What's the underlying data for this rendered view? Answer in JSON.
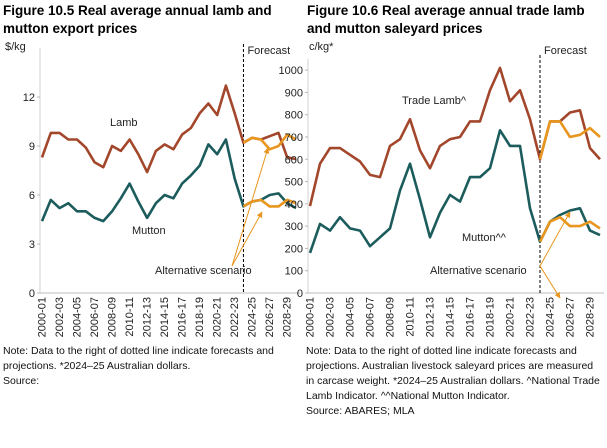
{
  "chart_data": [
    {
      "type": "line",
      "title": [
        "Figure 10.5 Real average annual lamb and",
        "mutton export prices"
      ],
      "y_label": "$/kg",
      "categories": [
        "2000-01",
        null,
        "2002-03",
        null,
        "2004-05",
        null,
        "2006-07",
        null,
        "2008-09",
        null,
        "2010-11",
        null,
        "2012-13",
        null,
        "2014-15",
        null,
        "2016-17",
        null,
        "2018-19",
        null,
        "2020-21",
        null,
        "2022-23",
        null,
        "2024-25",
        null,
        "2026-27",
        null,
        "2028-29",
        null
      ],
      "series": [
        {
          "name": "Lamb",
          "color": "#a3472c",
          "values": [
            8.3,
            9.8,
            9.8,
            9.4,
            9.4,
            8.9,
            8.0,
            7.7,
            9.0,
            8.7,
            9.4,
            8.5,
            7.4,
            8.7,
            9.1,
            8.8,
            9.7,
            10.1,
            11.0,
            11.6,
            10.9,
            12.7,
            11.0,
            9.2,
            9.5,
            9.4,
            9.6,
            9.8,
            8.3,
            8.2
          ]
        },
        {
          "name": "Mutton",
          "color": "#1d5c5c",
          "values": [
            4.4,
            5.7,
            5.2,
            5.5,
            5.0,
            5.0,
            4.6,
            4.4,
            5.0,
            5.8,
            6.7,
            5.6,
            4.6,
            5.5,
            6.0,
            5.8,
            6.7,
            7.2,
            7.8,
            9.1,
            8.5,
            9.4,
            7.0,
            5.3,
            5.6,
            5.7,
            6.0,
            6.1,
            5.5,
            5.2
          ]
        },
        {
          "color": "#e8961e",
          "values": [
            null,
            null,
            null,
            null,
            null,
            null,
            null,
            null,
            null,
            null,
            null,
            null,
            null,
            null,
            null,
            null,
            null,
            null,
            null,
            null,
            null,
            null,
            null,
            9.2,
            9.5,
            9.4,
            8.8,
            9.0,
            9.7,
            9.4
          ]
        },
        {
          "color": "#e8961e",
          "values": [
            null,
            null,
            null,
            null,
            null,
            null,
            null,
            null,
            null,
            null,
            null,
            null,
            null,
            null,
            null,
            null,
            null,
            null,
            null,
            null,
            null,
            null,
            null,
            5.3,
            5.6,
            5.7,
            5.3,
            5.3,
            5.7,
            5.5
          ]
        }
      ],
      "annotation": "Alternative scenario",
      "forecast_label": "Forecast",
      "ylim": [
        0,
        15
      ],
      "yticks": [
        0,
        3,
        6,
        9,
        12
      ]
    },
    {
      "type": "line",
      "title": [
        "Figure 10.6 Real average annual trade lamb",
        "and mutton saleyard prices"
      ],
      "y_label": "c/kg*",
      "categories": [
        "2000-01",
        null,
        "2002-03",
        null,
        "2004-05",
        null,
        "2006-07",
        null,
        "2008-09",
        null,
        "2010-11",
        null,
        "2012-13",
        null,
        "2014-15",
        null,
        "2016-17",
        null,
        "2018-19",
        null,
        "2020-21",
        null,
        "2022-23",
        null,
        "2024-25",
        null,
        "2026-27",
        null,
        "2028-29",
        null
      ],
      "series": [
        {
          "name": "Trade Lamb^",
          "color": "#a3472c",
          "values": [
            390,
            580,
            650,
            650,
            620,
            590,
            530,
            520,
            660,
            690,
            780,
            640,
            560,
            660,
            690,
            700,
            770,
            770,
            910,
            1010,
            860,
            910,
            780,
            600,
            770,
            770,
            810,
            820,
            650,
            600
          ]
        },
        {
          "name": "Mutton^^",
          "color": "#1d5c5c",
          "values": [
            180,
            310,
            280,
            340,
            290,
            280,
            210,
            250,
            290,
            460,
            580,
            420,
            250,
            360,
            440,
            410,
            520,
            520,
            560,
            730,
            660,
            660,
            380,
            230,
            320,
            350,
            370,
            380,
            280,
            260
          ]
        },
        {
          "color": "#e8961e",
          "values": [
            null,
            null,
            null,
            null,
            null,
            null,
            null,
            null,
            null,
            null,
            null,
            null,
            null,
            null,
            null,
            null,
            null,
            null,
            null,
            null,
            null,
            null,
            null,
            600,
            770,
            770,
            700,
            710,
            740,
            700
          ]
        },
        {
          "color": "#e8961e",
          "values": [
            null,
            null,
            null,
            null,
            null,
            null,
            null,
            null,
            null,
            null,
            null,
            null,
            null,
            null,
            null,
            null,
            null,
            null,
            null,
            null,
            null,
            null,
            null,
            230,
            320,
            340,
            300,
            300,
            320,
            290
          ]
        }
      ],
      "annotation": "Alternative scenario",
      "forecast_label": "Forecast",
      "ylim": [
        0,
        1050
      ],
      "yticks": [
        0,
        100,
        200,
        300,
        400,
        500,
        600,
        700,
        800,
        900,
        1000
      ]
    }
  ],
  "notes": [
    {
      "text": "Note: Data to the right of dotted line indicate forecasts and projections. *2024–25 Australian dollars.",
      "source": "Source:"
    },
    {
      "text": "Note: Data to the right of dotted line indicate forecasts and projections. Australian livestock saleyard prices are measured in carcase weight. *2024–25 Australian dollars. ^National Trade Lamb Indicator. ^^National Mutton Indicator.",
      "source": "Source: ABARES; MLA"
    }
  ]
}
